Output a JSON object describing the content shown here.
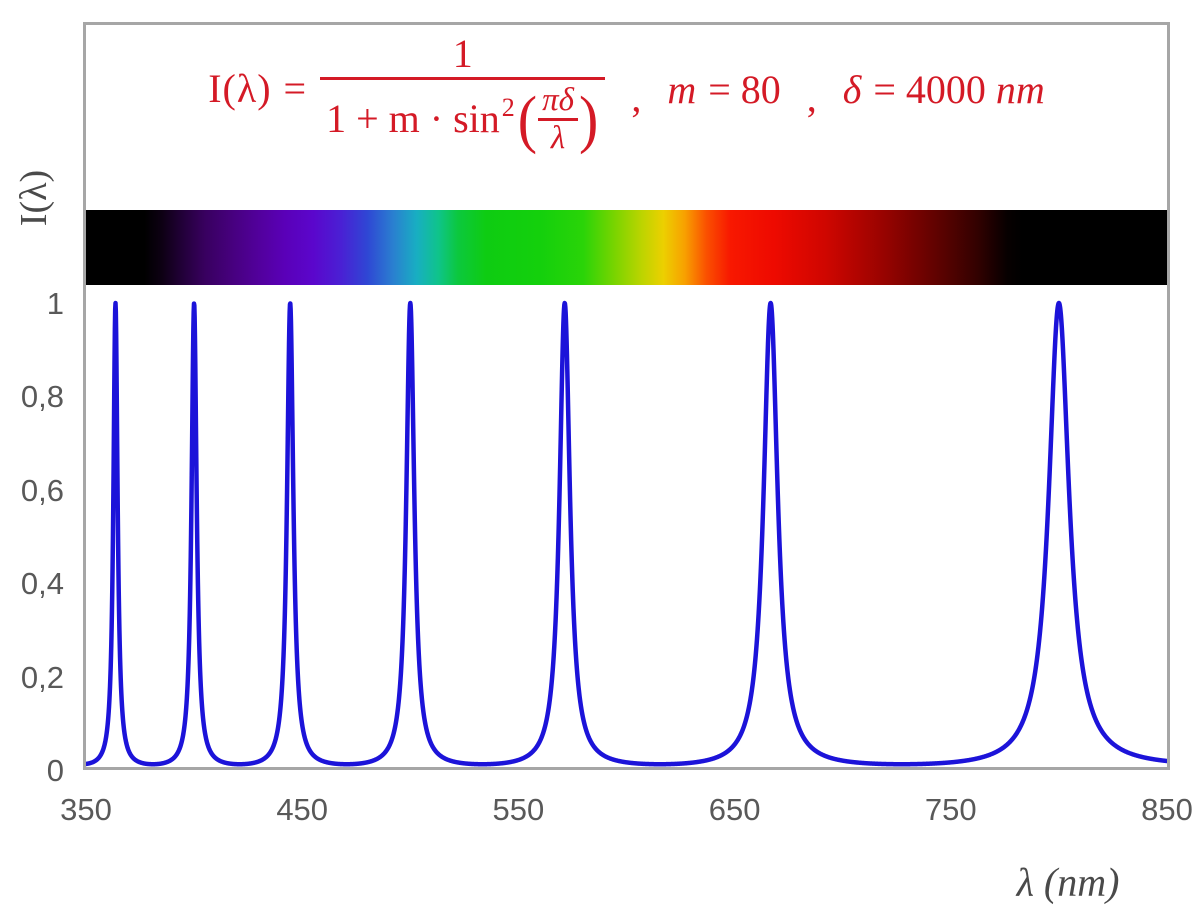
{
  "colors": {
    "formula_red": "#d41a26",
    "curve_blue": "#1c13d9",
    "axis_text_gray": "#595959",
    "axis_title_gray": "#4a4a4a",
    "frame_border_gray": "#a6a6a6",
    "plot_background": "#ffffff"
  },
  "formula": {
    "lhs": "I(λ)",
    "equals": "=",
    "numerator": "1",
    "den_pre": "1 + m · sin",
    "den_sup": "2",
    "open_paren": "(",
    "inner_num": "πδ",
    "inner_den": "λ",
    "close_paren": ")",
    "comma": ",",
    "param_m_symbol": "m",
    "param_m_value": "= 80",
    "param_d_symbol": "δ",
    "param_d_value": "= 4000",
    "param_d_unit": "nm"
  },
  "axes": {
    "x_title": "λ  (nm)",
    "y_title": "I(λ)"
  },
  "chart_data": {
    "type": "line",
    "title": "I(λ) = 1 / (1 + m·sin²(πδ/λ)),  m = 80,  δ = 4000 nm",
    "xlabel": "λ (nm)",
    "ylabel": "I(λ)",
    "xlim": [
      350,
      850
    ],
    "ylim": [
      0,
      1
    ],
    "grid": false,
    "legend": null,
    "line_color": "#1c13d9",
    "line_width": 4.5,
    "function": {
      "expression": "I(lambda) = 1 / (1 + m * sin(pi * delta / lambda)^2)",
      "m": 80,
      "delta_nm": 4000,
      "sample_step_nm": 0.15
    },
    "peaks_nm": [
      363.64,
      400.0,
      444.44,
      500.0,
      571.43,
      666.67,
      800.0
    ],
    "peak_value": 1.0,
    "minimum_value": 0.0123,
    "x_ticks": [
      {
        "label": "350",
        "value": 350
      },
      {
        "label": "450",
        "value": 450
      },
      {
        "label": "550",
        "value": 550
      },
      {
        "label": "650",
        "value": 650
      },
      {
        "label": "750",
        "value": 750
      },
      {
        "label": "850",
        "value": 850
      }
    ],
    "y_ticks": [
      {
        "label": "0",
        "value": 0.0
      },
      {
        "label": "0,2",
        "value": 0.2
      },
      {
        "label": "0,4",
        "value": 0.4
      },
      {
        "label": "0,6",
        "value": 0.6
      },
      {
        "label": "0,8",
        "value": 0.8
      },
      {
        "label": "1",
        "value": 1.0
      }
    ]
  },
  "spectrum_bar": {
    "lambda_min": 350,
    "lambda_max": 850,
    "visible_range_nm": [
      380,
      780
    ],
    "stops": [
      {
        "wl": 350,
        "color": "#000000"
      },
      {
        "wl": 377,
        "color": "#000000"
      },
      {
        "wl": 385,
        "color": "#0d0013"
      },
      {
        "wl": 395,
        "color": "#23003a"
      },
      {
        "wl": 405,
        "color": "#38005f"
      },
      {
        "wl": 418,
        "color": "#47007f"
      },
      {
        "wl": 430,
        "color": "#52009c"
      },
      {
        "wl": 442,
        "color": "#5a00b8"
      },
      {
        "wl": 455,
        "color": "#5b06cc"
      },
      {
        "wl": 468,
        "color": "#4a20d4"
      },
      {
        "wl": 480,
        "color": "#2f46d4"
      },
      {
        "wl": 492,
        "color": "#2a7fd0"
      },
      {
        "wl": 503,
        "color": "#18aec2"
      },
      {
        "wl": 513,
        "color": "#0fc48a"
      },
      {
        "wl": 522,
        "color": "#0cc83e"
      },
      {
        "wl": 535,
        "color": "#0ecc12"
      },
      {
        "wl": 560,
        "color": "#14d00c"
      },
      {
        "wl": 580,
        "color": "#2ad408"
      },
      {
        "wl": 595,
        "color": "#7cd400"
      },
      {
        "wl": 607,
        "color": "#bcd400"
      },
      {
        "wl": 617,
        "color": "#ecd000"
      },
      {
        "wl": 627,
        "color": "#f8a000"
      },
      {
        "wl": 637,
        "color": "#fa5000"
      },
      {
        "wl": 648,
        "color": "#f81800"
      },
      {
        "wl": 668,
        "color": "#ee0a00"
      },
      {
        "wl": 692,
        "color": "#cf0600"
      },
      {
        "wl": 718,
        "color": "#9a0300"
      },
      {
        "wl": 742,
        "color": "#630200"
      },
      {
        "wl": 762,
        "color": "#330100"
      },
      {
        "wl": 776,
        "color": "#070000"
      },
      {
        "wl": 783,
        "color": "#000000"
      },
      {
        "wl": 850,
        "color": "#000000"
      }
    ]
  }
}
